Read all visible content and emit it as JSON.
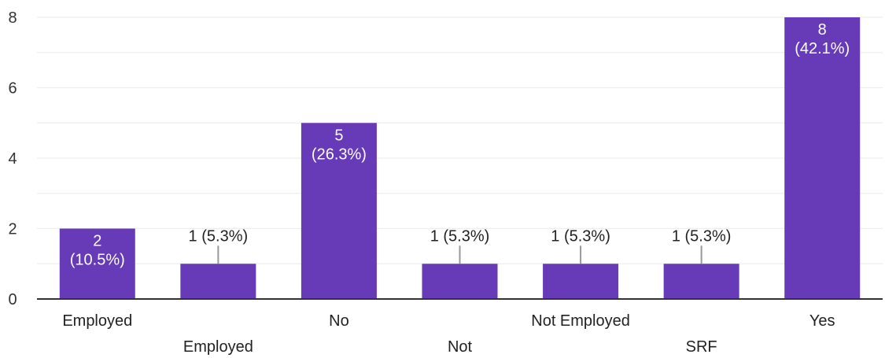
{
  "chart_data": {
    "type": "bar",
    "categories": [
      "Employed",
      "Employed",
      "No",
      "Not",
      "Not Employed",
      "SRF",
      "Yes"
    ],
    "values": [
      2,
      1,
      5,
      1,
      1,
      1,
      8
    ],
    "value_labels": [
      [
        "2",
        "(10.5%)"
      ],
      [
        "1 (5.3%)"
      ],
      [
        "5",
        "(26.3%)"
      ],
      [
        "1 (5.3%)"
      ],
      [
        "1 (5.3%)"
      ],
      [
        "1 (5.3%)"
      ],
      [
        "8",
        "(42.1%)"
      ]
    ],
    "ylim": [
      0,
      8
    ],
    "yticks": [
      0,
      2,
      4,
      6,
      8
    ],
    "title": "",
    "xlabel": "",
    "ylabel": "",
    "grid": true,
    "legend": "none",
    "colors": {
      "bar": "#673ab7",
      "grid": "#eeeeee",
      "axis": "#333333",
      "leader": "#999999"
    }
  }
}
